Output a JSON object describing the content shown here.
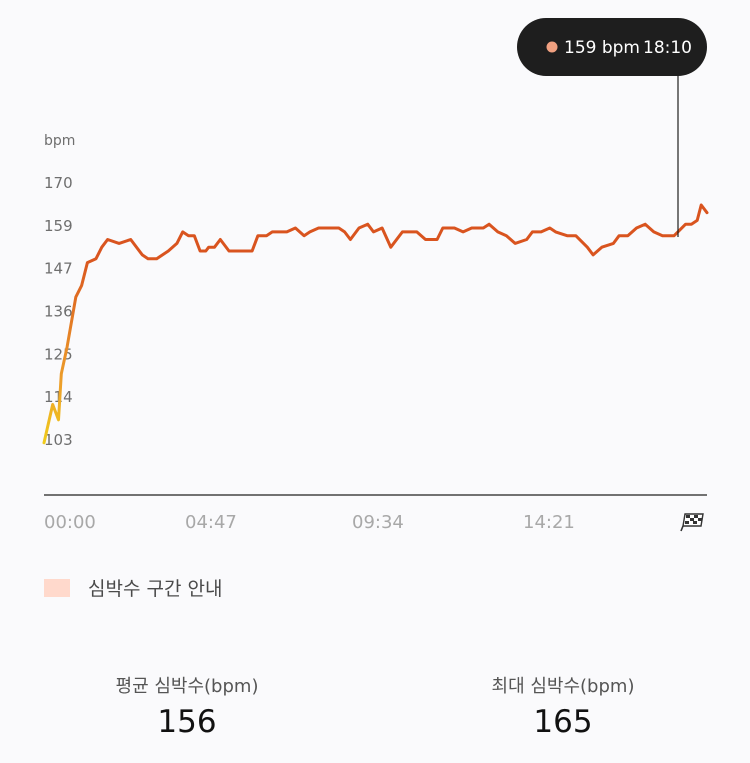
{
  "tooltip": {
    "value": "159 bpm",
    "time": "18:10",
    "dot_color": "#f0a080"
  },
  "legend": {
    "label": "심박수 구간 안내",
    "color": "#ffd9cc"
  },
  "stats": {
    "avg_label": "평균 심박수(bpm)",
    "avg_value": "156",
    "max_label": "최대 심박수(bpm)",
    "max_value": "165"
  },
  "colors": {
    "line_main": "#d9541f",
    "line_low": "#f0c419",
    "axis": "#444444",
    "tooltip_bg": "#1e1e1e"
  },
  "chart_data": {
    "type": "line",
    "title": "",
    "ylabel": "bpm",
    "xlabel": "",
    "y_ticks": [
      "170",
      "159",
      "147",
      "136",
      "125",
      "114",
      "103"
    ],
    "x_ticks": [
      "00:00",
      "04:47",
      "09:34",
      "14:21"
    ],
    "end_marker": "finish-flag-icon",
    "ylim": [
      98,
      171
    ],
    "xlim_minutes": [
      0,
      1147
    ],
    "grid": false,
    "series": [
      {
        "x_minutes": [
          0,
          15,
          25,
          30,
          40,
          55,
          65,
          75,
          90,
          100,
          110,
          130,
          150,
          170,
          180,
          195,
          215,
          230,
          240,
          250,
          260,
          270,
          280,
          285,
          295,
          305,
          320,
          340,
          360,
          370,
          385,
          395,
          410,
          420,
          435,
          450,
          460,
          475,
          490,
          510,
          520,
          530,
          545,
          560,
          570,
          585,
          600,
          620,
          635,
          645,
          660,
          680,
          690,
          700,
          710,
          725,
          740,
          760,
          770,
          785,
          800,
          815,
          835,
          845,
          860,
          875,
          885,
          905,
          920,
          940,
          950,
          965,
          985,
          995,
          1010,
          1025,
          1040,
          1055,
          1070,
          1090,
          1110,
          1120,
          1130,
          1137,
          1147
        ],
        "bpm": [
          102,
          112,
          108,
          120,
          127,
          140,
          143,
          149,
          150,
          153,
          155,
          154,
          155,
          151,
          150,
          150,
          152,
          154,
          157,
          156,
          156,
          152,
          152,
          153,
          153,
          155,
          152,
          152,
          152,
          156,
          156,
          157,
          157,
          157,
          158,
          156,
          157,
          158,
          158,
          158,
          157,
          155,
          158,
          159,
          157,
          158,
          153,
          157,
          157,
          157,
          155,
          155,
          158,
          158,
          158,
          157,
          158,
          158,
          159,
          157,
          156,
          154,
          155,
          157,
          157,
          158,
          157,
          156,
          156,
          153,
          151,
          153,
          154,
          156,
          156,
          158,
          159,
          157,
          156,
          156,
          159,
          159,
          160,
          164,
          162
        ]
      }
    ]
  }
}
